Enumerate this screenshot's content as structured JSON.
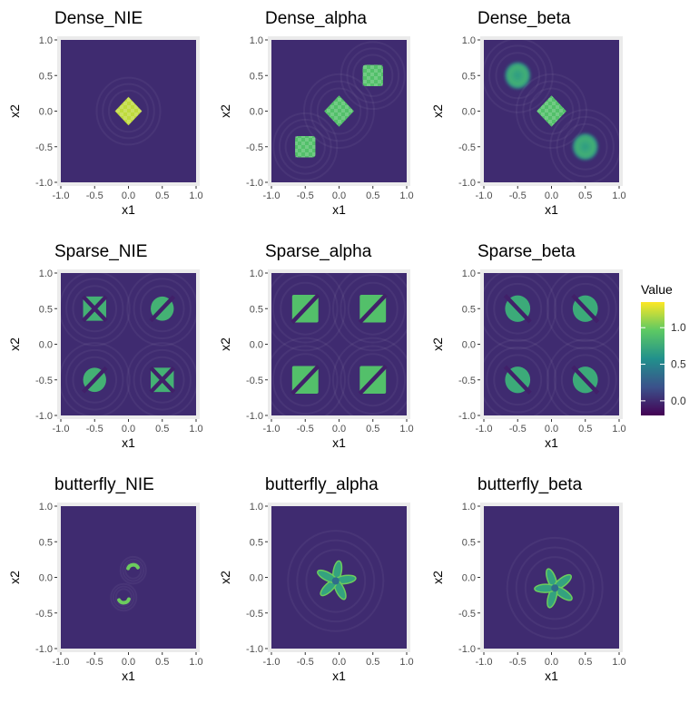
{
  "chart_data": {
    "type": "heatmap",
    "layout": "facet-grid 3x3",
    "grid": true,
    "panels": [
      {
        "title": "Dense_NIE",
        "xlabel": "x1",
        "ylabel": "x2",
        "xlim": [
          -1,
          1
        ],
        "ylim": [
          -1,
          1
        ],
        "xticks": [
          "-1.0",
          "-0.5",
          "0.0",
          "0.5",
          "1.0"
        ],
        "yticks": [
          "-1.0",
          "-0.5",
          "0.0",
          "0.5",
          "1.0"
        ],
        "features": [
          {
            "shape": "diamond",
            "cx": 0.0,
            "cy": 0.0,
            "size": 0.2,
            "value": 1.2,
            "checker": true
          }
        ]
      },
      {
        "title": "Dense_alpha",
        "xlabel": "x1",
        "ylabel": "x2",
        "xlim": [
          -1,
          1
        ],
        "ylim": [
          -1,
          1
        ],
        "xticks": [
          "-1.0",
          "-0.5",
          "0.0",
          "0.5",
          "1.0"
        ],
        "yticks": [
          "-1.0",
          "-0.5",
          "0.0",
          "0.5",
          "1.0"
        ],
        "features": [
          {
            "shape": "square",
            "cx": -0.5,
            "cy": -0.5,
            "size": 0.2,
            "value": 0.9,
            "checker": true
          },
          {
            "shape": "diamond",
            "cx": 0.0,
            "cy": 0.0,
            "size": 0.22,
            "value": 0.9,
            "checker": true
          },
          {
            "shape": "square",
            "cx": 0.5,
            "cy": 0.5,
            "size": 0.2,
            "value": 0.9,
            "checker": true
          }
        ]
      },
      {
        "title": "Dense_beta",
        "xlabel": "x1",
        "ylabel": "x2",
        "xlim": [
          -1,
          1
        ],
        "ylim": [
          -1,
          1
        ],
        "xticks": [
          "-1.0",
          "-0.5",
          "0.0",
          "0.5",
          "1.0"
        ],
        "yticks": [
          "-1.0",
          "-0.5",
          "0.0",
          "0.5",
          "1.0"
        ],
        "features": [
          {
            "shape": "circle",
            "cx": -0.5,
            "cy": 0.5,
            "size": 0.22,
            "value": 0.8
          },
          {
            "shape": "diamond",
            "cx": 0.0,
            "cy": 0.0,
            "size": 0.22,
            "value": 0.9,
            "checker": true
          },
          {
            "shape": "circle",
            "cx": 0.5,
            "cy": -0.5,
            "size": 0.22,
            "value": 0.8
          }
        ]
      },
      {
        "title": "Sparse_NIE",
        "xlabel": "x1",
        "ylabel": "x2",
        "xlim": [
          -1,
          1
        ],
        "ylim": [
          -1,
          1
        ],
        "xticks": [
          "-1.0",
          "-0.5",
          "0.0",
          "0.5",
          "1.0"
        ],
        "yticks": [
          "-1.0",
          "-0.5",
          "0.0",
          "0.5",
          "1.0"
        ],
        "features": [
          {
            "shape": "cross-square",
            "cx": -0.5,
            "cy": 0.5,
            "size": 0.22,
            "value": 0.8
          },
          {
            "shape": "slash-circle",
            "cx": 0.5,
            "cy": 0.5,
            "size": 0.22,
            "value": 0.8,
            "dir": "down"
          },
          {
            "shape": "slash-circle",
            "cx": -0.5,
            "cy": -0.5,
            "size": 0.22,
            "value": 0.8,
            "dir": "down"
          },
          {
            "shape": "cross-square",
            "cx": 0.5,
            "cy": -0.5,
            "size": 0.22,
            "value": 0.8
          }
        ]
      },
      {
        "title": "Sparse_alpha",
        "xlabel": "x1",
        "ylabel": "x2",
        "xlim": [
          -1,
          1
        ],
        "ylim": [
          -1,
          1
        ],
        "xticks": [
          "-1.0",
          "-0.5",
          "0.0",
          "0.5",
          "1.0"
        ],
        "yticks": [
          "-1.0",
          "-0.5",
          "0.0",
          "0.5",
          "1.0"
        ],
        "features": [
          {
            "shape": "slash-square",
            "cx": -0.5,
            "cy": 0.5,
            "size": 0.25,
            "value": 0.9
          },
          {
            "shape": "slash-square",
            "cx": 0.5,
            "cy": 0.5,
            "size": 0.25,
            "value": 0.9
          },
          {
            "shape": "slash-square",
            "cx": -0.5,
            "cy": -0.5,
            "size": 0.25,
            "value": 0.9
          },
          {
            "shape": "slash-square",
            "cx": 0.5,
            "cy": -0.5,
            "size": 0.25,
            "value": 0.9
          }
        ]
      },
      {
        "title": "Sparse_beta",
        "xlabel": "x1",
        "ylabel": "x2",
        "xlim": [
          -1,
          1
        ],
        "ylim": [
          -1,
          1
        ],
        "xticks": [
          "-1.0",
          "-0.5",
          "0.0",
          "0.5",
          "1.0"
        ],
        "yticks": [
          "-1.0",
          "-0.5",
          "0.0",
          "0.5",
          "1.0"
        ],
        "features": [
          {
            "shape": "slash-circle",
            "cx": -0.5,
            "cy": 0.5,
            "size": 0.24,
            "value": 0.75,
            "dir": "up"
          },
          {
            "shape": "slash-circle",
            "cx": 0.5,
            "cy": 0.5,
            "size": 0.24,
            "value": 0.75,
            "dir": "up"
          },
          {
            "shape": "slash-circle",
            "cx": -0.5,
            "cy": -0.5,
            "size": 0.24,
            "value": 0.75,
            "dir": "up"
          },
          {
            "shape": "slash-circle",
            "cx": 0.5,
            "cy": -0.5,
            "size": 0.24,
            "value": 0.75,
            "dir": "up"
          }
        ]
      },
      {
        "title": "butterfly_NIE",
        "xlabel": "x1",
        "ylabel": "x2",
        "xlim": [
          -1,
          1
        ],
        "ylim": [
          -1,
          1
        ],
        "xticks": [
          "-1.0",
          "-0.5",
          "0.0",
          "0.5",
          "1.0"
        ],
        "yticks": [
          "-1.0",
          "-0.5",
          "0.0",
          "0.5",
          "1.0"
        ],
        "features": [
          {
            "shape": "arc",
            "cx": 0.07,
            "cy": 0.1,
            "size": 0.08,
            "value": 1.0,
            "start": 200,
            "end": 330
          },
          {
            "shape": "arc",
            "cx": -0.07,
            "cy": -0.28,
            "size": 0.08,
            "value": 1.0,
            "start": 20,
            "end": 150
          }
        ]
      },
      {
        "title": "butterfly_alpha",
        "xlabel": "x1",
        "ylabel": "x2",
        "xlim": [
          -1,
          1
        ],
        "ylim": [
          -1,
          1
        ],
        "xticks": [
          "-1.0",
          "-0.5",
          "0.0",
          "0.5",
          "1.0"
        ],
        "yticks": [
          "-1.0",
          "-0.5",
          "0.0",
          "0.5",
          "1.0"
        ],
        "features": [
          {
            "shape": "flower",
            "cx": -0.05,
            "cy": -0.05,
            "size": 0.3,
            "value": 0.7,
            "rotation": 10
          }
        ]
      },
      {
        "title": "butterfly_beta",
        "xlabel": "x1",
        "ylabel": "x2",
        "xlim": [
          -1,
          1
        ],
        "ylim": [
          -1,
          1
        ],
        "xticks": [
          "-1.0",
          "-0.5",
          "0.0",
          "0.5",
          "1.0"
        ],
        "yticks": [
          "-1.0",
          "-0.5",
          "0.0",
          "0.5",
          "1.0"
        ],
        "features": [
          {
            "shape": "flower",
            "cx": 0.05,
            "cy": -0.15,
            "size": 0.3,
            "value": 0.7,
            "rotation": -20
          }
        ]
      }
    ],
    "background_value": 0.0,
    "colorbar": {
      "title": "Value",
      "limits": [
        -0.2,
        1.35
      ],
      "ticks": [
        {
          "value": 1.0,
          "label": "1.0"
        },
        {
          "value": 0.5,
          "label": "0.5"
        },
        {
          "value": 0.0,
          "label": "0.0"
        }
      ],
      "palette": "viridis",
      "stops": [
        "#440154",
        "#3b528b",
        "#21908c",
        "#5dc963",
        "#fde725"
      ]
    }
  }
}
